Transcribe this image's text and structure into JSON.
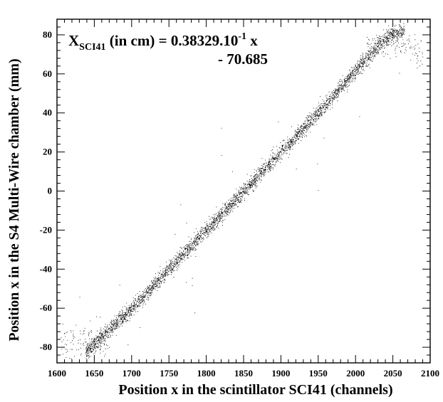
{
  "chart_data": {
    "type": "scatter",
    "title": "",
    "xlabel": "Position x in the scintillator SCI41 (channels)",
    "ylabel": "Position x in the S4 Multi-Wire chamber (mm)",
    "xlim": [
      1600,
      2100
    ],
    "ylim": [
      -88,
      88
    ],
    "x_ticks": [
      1600,
      1650,
      1700,
      1750,
      1800,
      1850,
      1900,
      1950,
      2000,
      2050,
      2100
    ],
    "y_ticks": [
      -80,
      -60,
      -40,
      -20,
      0,
      20,
      40,
      60,
      80
    ],
    "grid": false,
    "legend": "none",
    "point_color": "#000000",
    "annotation": {
      "symbol": "X",
      "subscript": "SCI41",
      "unit_text": " (in cm) = ",
      "coefficient": "0.38329.10",
      "exponent": "-1",
      "variable": " x",
      "offset": "- 70.685"
    },
    "band": {
      "description_points": [
        {
          "x": 1640,
          "y": -82
        },
        {
          "x": 1700,
          "y": -60
        },
        {
          "x": 1800,
          "y": -20
        },
        {
          "x": 1850,
          "y": 0
        },
        {
          "x": 1900,
          "y": 20
        },
        {
          "x": 1950,
          "y": 40
        },
        {
          "x": 2000,
          "y": 62
        },
        {
          "x": 2045,
          "y": 80
        },
        {
          "x": 2065,
          "y": 82
        }
      ],
      "n_points": 9000
    }
  }
}
